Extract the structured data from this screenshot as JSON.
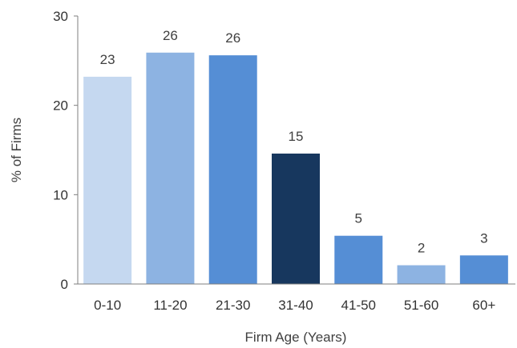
{
  "chart_data": {
    "type": "bar",
    "title": "",
    "xlabel": "Firm Age (Years)",
    "ylabel": "% of Firms",
    "categories": [
      "0-10",
      "11-20",
      "21-30",
      "31-40",
      "41-50",
      "51-60",
      "60+"
    ],
    "values": [
      23.2,
      25.9,
      25.6,
      14.6,
      5.4,
      2.1,
      3.2
    ],
    "data_labels": [
      "23",
      "26",
      "26",
      "15",
      "5",
      "2",
      "3"
    ],
    "bar_colors": [
      "#c5d8f0",
      "#8db3e2",
      "#558ed5",
      "#17375e",
      "#558ed5",
      "#8db3e2",
      "#558ed5"
    ],
    "ylim": [
      0,
      30
    ],
    "yticks": [
      0,
      10,
      20,
      30
    ],
    "grid": false,
    "legend": "none"
  },
  "colors": {
    "axis": "#7f7f7f",
    "text": "#404040"
  }
}
